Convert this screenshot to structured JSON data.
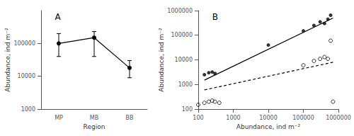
{
  "chart_data": [
    {
      "type": "line",
      "categories": [
        "MP",
        "MB",
        "BB"
      ],
      "values": [
        100000,
        150000,
        18000
      ],
      "yerr_upper": [
        100000,
        80000,
        12000
      ],
      "yerr_lower": [
        60000,
        110000,
        9000
      ],
      "xlabel": "Region",
      "ylabel": "Abundance, ind m⁻²",
      "annotation": "A",
      "log": "y",
      "ylim": [
        1000,
        1000000
      ],
      "yticks": [
        1000,
        10000,
        100000
      ],
      "grid": false,
      "color": "black",
      "marker": "circle",
      "line_style": "solid"
    },
    {
      "type": "scatter",
      "xlabel": "Abundance, ind m⁻²",
      "ylabel": "Abundance, ind m⁻²",
      "annotation": "B",
      "log": true,
      "xlim": [
        100,
        1000000
      ],
      "ylim": [
        100,
        1000000
      ],
      "xticks": [
        100,
        1000,
        10000,
        100000,
        1000000
      ],
      "yticks": [
        100,
        1000,
        10000,
        100000,
        1000000
      ],
      "grid": false,
      "series": [
        {
          "type": "scatter",
          "marker": "circle",
          "color": "black",
          "x": [
            150,
            200,
            250,
            300,
            10000,
            100000,
            200000,
            300000,
            400000,
            500000,
            600000
          ],
          "values": [
            2500,
            3000,
            3200,
            2800,
            40000,
            150000,
            250000,
            350000,
            300000,
            450000,
            650000
          ]
        },
        {
          "type": "scatter",
          "marker": "open_circle",
          "color": "black",
          "x": [
            100,
            150,
            200,
            250,
            300,
            400,
            100000,
            200000,
            300000,
            400000,
            500000,
            700000,
            600000
          ],
          "values": [
            150,
            180,
            200,
            220,
            200,
            180,
            6000,
            9000,
            11000,
            13000,
            11000,
            200,
            60000
          ]
        },
        {
          "type": "line",
          "line_style": "solid",
          "color": "black",
          "x": [
            150,
            700000
          ],
          "values": [
            1500,
            500000
          ]
        },
        {
          "type": "line",
          "line_style": "dashed",
          "color": "black",
          "x": [
            150,
            700000
          ],
          "values": [
            600,
            8000
          ]
        }
      ]
    }
  ]
}
